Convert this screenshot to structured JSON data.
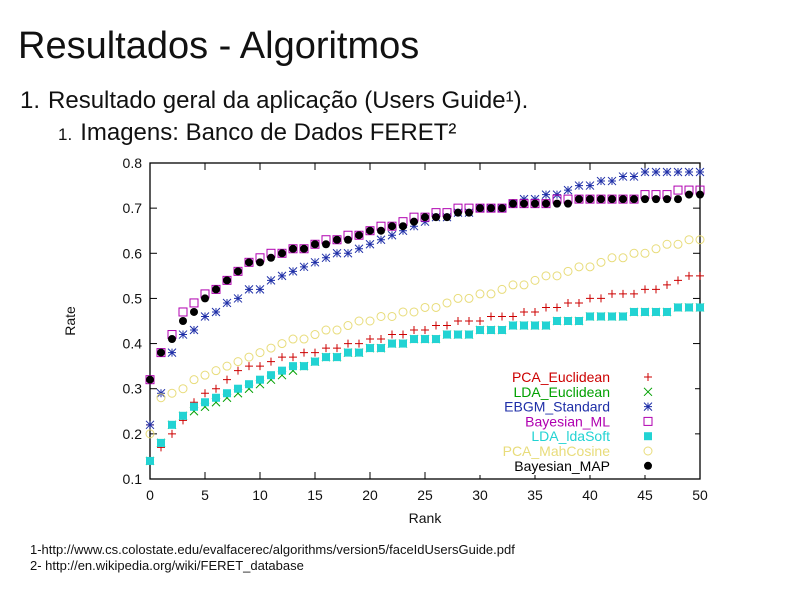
{
  "slide": {
    "title": "Resultados - Algoritmos",
    "bullet1_num": "1.",
    "bullet1": "Resultado geral da aplicação (Users Guide¹).",
    "bullet2_num": "1.",
    "bullet2": "Imagens: Banco de Dados FERET²",
    "ref1": "1-http://www.cs.colostate.edu/evalfacerec/algorithms/version5/faceIdUsersGuide.pdf",
    "ref2": "2- http://en.wikipedia.org/wiki/FERET_database"
  },
  "chart_data": {
    "type": "scatter",
    "title": "",
    "xlabel": "Rank",
    "ylabel": "Rate",
    "xlim": [
      0,
      50
    ],
    "ylim": [
      0.1,
      0.8
    ],
    "xticks": [
      0,
      5,
      10,
      15,
      20,
      25,
      30,
      35,
      40,
      45,
      50
    ],
    "yticks": [
      0.1,
      0.2,
      0.3,
      0.4,
      0.5,
      0.6,
      0.7,
      0.8
    ],
    "legend_position": "bottom-right",
    "x": [
      0,
      1,
      2,
      3,
      4,
      5,
      6,
      7,
      8,
      9,
      10,
      11,
      12,
      13,
      14,
      15,
      16,
      17,
      18,
      19,
      20,
      21,
      22,
      23,
      24,
      25,
      26,
      27,
      28,
      29,
      30,
      31,
      32,
      33,
      34,
      35,
      36,
      37,
      38,
      39,
      40,
      41,
      42,
      43,
      44,
      45,
      46,
      47,
      48,
      49,
      50
    ],
    "series": [
      {
        "name": "PCA_Euclidean",
        "marker": "plus",
        "color": "#cc0000",
        "values": [
          0.22,
          0.17,
          0.2,
          0.23,
          0.27,
          0.29,
          0.3,
          0.32,
          0.34,
          0.35,
          0.35,
          0.36,
          0.37,
          0.37,
          0.38,
          0.38,
          0.39,
          0.39,
          0.4,
          0.4,
          0.41,
          0.41,
          0.42,
          0.42,
          0.43,
          0.43,
          0.44,
          0.44,
          0.45,
          0.45,
          0.45,
          0.46,
          0.46,
          0.46,
          0.47,
          0.47,
          0.48,
          0.48,
          0.49,
          0.49,
          0.5,
          0.5,
          0.51,
          0.51,
          0.51,
          0.52,
          0.52,
          0.53,
          0.54,
          0.55,
          0.55
        ]
      },
      {
        "name": "LDA_Euclidean",
        "marker": "x",
        "color": "#00a000",
        "values": [
          0.14,
          0.18,
          0.22,
          0.24,
          0.25,
          0.26,
          0.27,
          0.28,
          0.29,
          0.3,
          0.31,
          0.32,
          0.33,
          0.34,
          0.35,
          0.36,
          0.37,
          0.37,
          0.38,
          0.38,
          0.39,
          0.39,
          0.4,
          0.4,
          0.41,
          0.41,
          0.41,
          0.42,
          0.42,
          0.42,
          0.43,
          0.43,
          0.43,
          0.44,
          0.44,
          0.44,
          0.44,
          0.45,
          0.45,
          0.45,
          0.46,
          0.46,
          0.46,
          0.46,
          0.47,
          0.47,
          0.47,
          0.47,
          0.48,
          0.48,
          0.48
        ]
      },
      {
        "name": "EBGM_Standard",
        "marker": "star",
        "color": "#1f2fa8",
        "values": [
          0.22,
          0.29,
          0.38,
          0.42,
          0.43,
          0.46,
          0.47,
          0.49,
          0.5,
          0.52,
          0.52,
          0.54,
          0.55,
          0.56,
          0.57,
          0.58,
          0.59,
          0.6,
          0.6,
          0.61,
          0.62,
          0.63,
          0.64,
          0.65,
          0.66,
          0.67,
          0.68,
          0.68,
          0.69,
          0.69,
          0.7,
          0.7,
          0.7,
          0.71,
          0.72,
          0.72,
          0.73,
          0.73,
          0.74,
          0.75,
          0.75,
          0.76,
          0.76,
          0.77,
          0.77,
          0.78,
          0.78,
          0.78,
          0.78,
          0.78,
          0.78
        ]
      },
      {
        "name": "Bayesian_ML",
        "marker": "square-open",
        "color": "#b000b0",
        "values": [
          0.32,
          0.38,
          0.42,
          0.47,
          0.49,
          0.51,
          0.52,
          0.54,
          0.56,
          0.58,
          0.59,
          0.6,
          0.6,
          0.61,
          0.61,
          0.62,
          0.63,
          0.63,
          0.64,
          0.64,
          0.65,
          0.66,
          0.66,
          0.67,
          0.68,
          0.68,
          0.69,
          0.69,
          0.7,
          0.7,
          0.7,
          0.7,
          0.7,
          0.71,
          0.71,
          0.71,
          0.71,
          0.72,
          0.72,
          0.72,
          0.72,
          0.72,
          0.72,
          0.72,
          0.72,
          0.73,
          0.73,
          0.73,
          0.74,
          0.74,
          0.74
        ]
      },
      {
        "name": "LDA_ldaSoft",
        "marker": "square-filled",
        "color": "#22d3d3",
        "values": [
          0.14,
          0.18,
          0.22,
          0.24,
          0.26,
          0.27,
          0.28,
          0.29,
          0.3,
          0.31,
          0.32,
          0.33,
          0.34,
          0.35,
          0.35,
          0.36,
          0.37,
          0.37,
          0.38,
          0.38,
          0.39,
          0.39,
          0.4,
          0.4,
          0.41,
          0.41,
          0.41,
          0.42,
          0.42,
          0.42,
          0.43,
          0.43,
          0.43,
          0.44,
          0.44,
          0.44,
          0.44,
          0.45,
          0.45,
          0.45,
          0.46,
          0.46,
          0.46,
          0.46,
          0.47,
          0.47,
          0.47,
          0.47,
          0.48,
          0.48,
          0.48
        ]
      },
      {
        "name": "PCA_MahCosine",
        "marker": "circle-open",
        "color": "#e8dc7a",
        "values": [
          0.2,
          0.28,
          0.29,
          0.3,
          0.32,
          0.33,
          0.34,
          0.35,
          0.36,
          0.37,
          0.38,
          0.39,
          0.4,
          0.41,
          0.41,
          0.42,
          0.43,
          0.43,
          0.44,
          0.45,
          0.45,
          0.46,
          0.46,
          0.47,
          0.47,
          0.48,
          0.48,
          0.49,
          0.5,
          0.5,
          0.51,
          0.51,
          0.52,
          0.53,
          0.53,
          0.54,
          0.55,
          0.55,
          0.56,
          0.57,
          0.57,
          0.58,
          0.59,
          0.59,
          0.6,
          0.6,
          0.61,
          0.62,
          0.62,
          0.63,
          0.63
        ]
      },
      {
        "name": "Bayesian_MAP",
        "marker": "circle-filled",
        "color": "#000000",
        "values": [
          0.32,
          0.38,
          0.41,
          0.45,
          0.47,
          0.5,
          0.52,
          0.54,
          0.56,
          0.58,
          0.58,
          0.59,
          0.6,
          0.61,
          0.61,
          0.62,
          0.62,
          0.63,
          0.63,
          0.64,
          0.65,
          0.65,
          0.66,
          0.66,
          0.67,
          0.68,
          0.68,
          0.68,
          0.69,
          0.69,
          0.7,
          0.7,
          0.7,
          0.71,
          0.71,
          0.71,
          0.71,
          0.71,
          0.71,
          0.72,
          0.72,
          0.72,
          0.72,
          0.72,
          0.72,
          0.72,
          0.72,
          0.72,
          0.72,
          0.73,
          0.73
        ]
      }
    ]
  }
}
